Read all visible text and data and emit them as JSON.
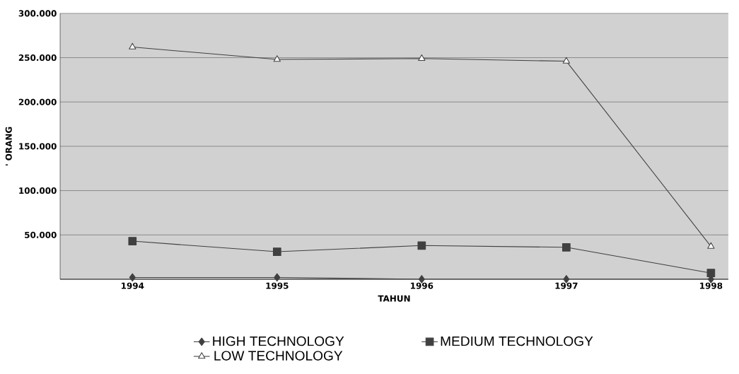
{
  "chart_data": {
    "type": "line",
    "xlabel": "TAHUN",
    "ylabel": "' ORANG",
    "categories": [
      "1994",
      "1995",
      "1996",
      "1997",
      "1998"
    ],
    "series": [
      {
        "name": "HIGH TECHNOLOGY",
        "color": "#404040",
        "marker": "diamond",
        "values": [
          2000,
          2000,
          0,
          0,
          0
        ]
      },
      {
        "name": "MEDIUM TECHNOLOGY",
        "color": "#404040",
        "marker": "square",
        "values": [
          43000,
          31000,
          38000,
          36000,
          7000
        ]
      },
      {
        "name": "LOW TECHNOLOGY",
        "color": "#404040",
        "marker": "triangle",
        "values": [
          262000,
          248000,
          249000,
          246000,
          37000
        ]
      }
    ],
    "ylim": [
      0,
      300000
    ],
    "yticks": [
      {
        "value": 50000,
        "label": "50.000"
      },
      {
        "value": 100000,
        "label": "100.000"
      },
      {
        "value": 150000,
        "label": "150.000"
      },
      {
        "value": 200000,
        "label": "200.000"
      },
      {
        "value": 250000,
        "label": "250.000"
      },
      {
        "value": 300000,
        "label": "300.000"
      }
    ],
    "grid": "y",
    "legend": "bottom",
    "line_style": "solid"
  }
}
